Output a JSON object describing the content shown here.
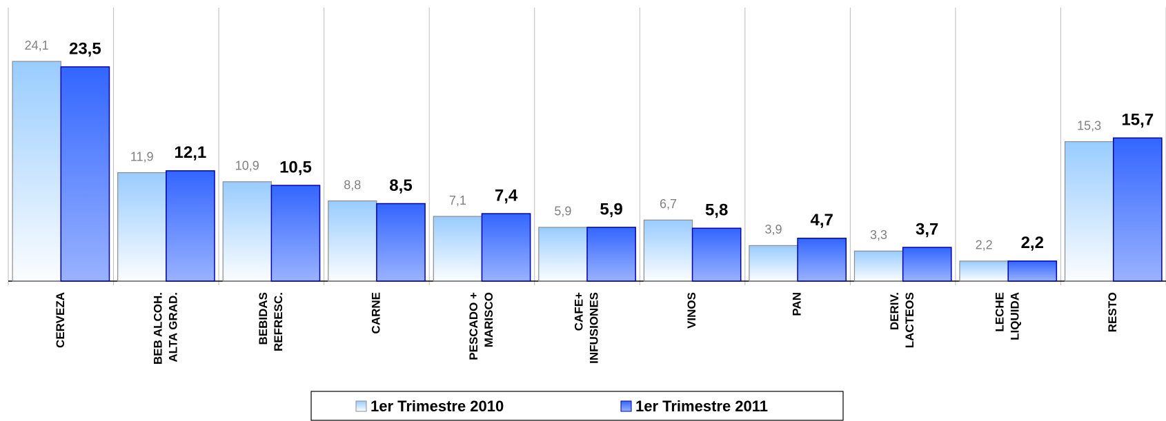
{
  "chart_data": {
    "type": "bar",
    "categories": [
      [
        "CERVEZA"
      ],
      [
        "BEB ALCOH.",
        "ALTA GRAD."
      ],
      [
        "BEBIDAS",
        "REFRESC."
      ],
      [
        "CARNE"
      ],
      [
        "PESCADO +",
        "MARISCO"
      ],
      [
        "CAFE+",
        "INFUSIONES"
      ],
      [
        "VINOS"
      ],
      [
        "PAN"
      ],
      [
        "DERIV.",
        "LACTEOS"
      ],
      [
        "LECHE",
        "LIQUIDA"
      ],
      [
        "RESTO"
      ]
    ],
    "series": [
      {
        "name": "1er Trimestre 2010",
        "color": "#99ccff",
        "values": [
          24.1,
          11.9,
          10.9,
          8.8,
          7.1,
          5.9,
          6.7,
          3.9,
          3.3,
          2.2,
          15.3
        ],
        "value_labels": [
          "24,1",
          "11,9",
          "10,9",
          "8,8",
          "7,1",
          "5,9",
          "6,7",
          "3,9",
          "3,3",
          "2,2",
          "15,3"
        ]
      },
      {
        "name": "1er Trimestre 2011",
        "color": "#3366ff",
        "values": [
          23.5,
          12.1,
          10.5,
          8.5,
          7.4,
          5.9,
          5.8,
          4.7,
          3.7,
          2.2,
          15.7
        ],
        "value_labels": [
          "23,5",
          "12,1",
          "10,5",
          "8,5",
          "7,4",
          "5,9",
          "5,8",
          "4,7",
          "3,7",
          "2,2",
          "15,7"
        ]
      }
    ],
    "ylim": [
      0,
      30
    ],
    "legend": "bottom"
  }
}
